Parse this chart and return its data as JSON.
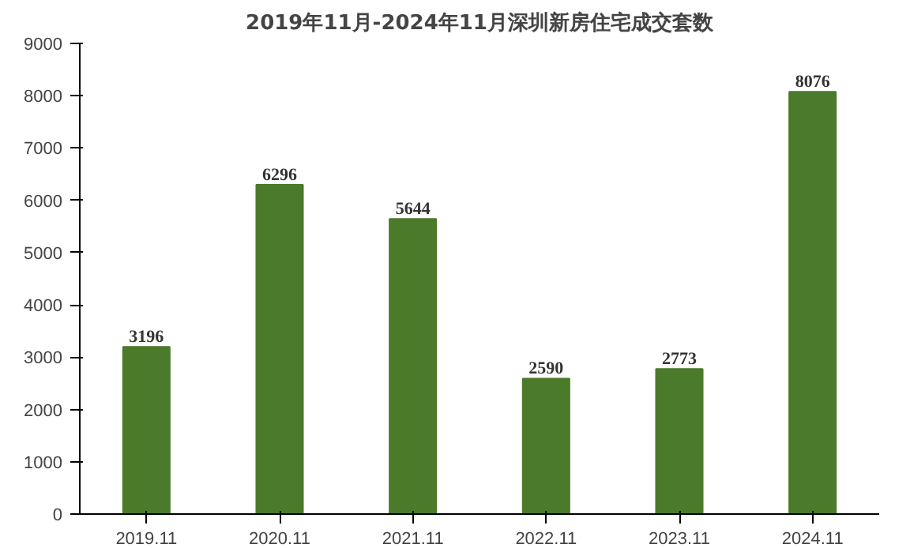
{
  "chart_data": {
    "type": "bar",
    "title": "2019年11月-2024年11月深圳新房住宅成交套数",
    "categories": [
      "2019.11",
      "2020.11",
      "2021.11",
      "2022.11",
      "2023.11",
      "2024.11"
    ],
    "values": [
      3196,
      6296,
      5644,
      2590,
      2773,
      8076
    ],
    "color": "#4b7a2b",
    "ylim": [
      0,
      9000
    ],
    "yticks": [
      0,
      1000,
      2000,
      3000,
      4000,
      5000,
      6000,
      7000,
      8000,
      9000
    ],
    "data_labels": true,
    "grid": false
  }
}
